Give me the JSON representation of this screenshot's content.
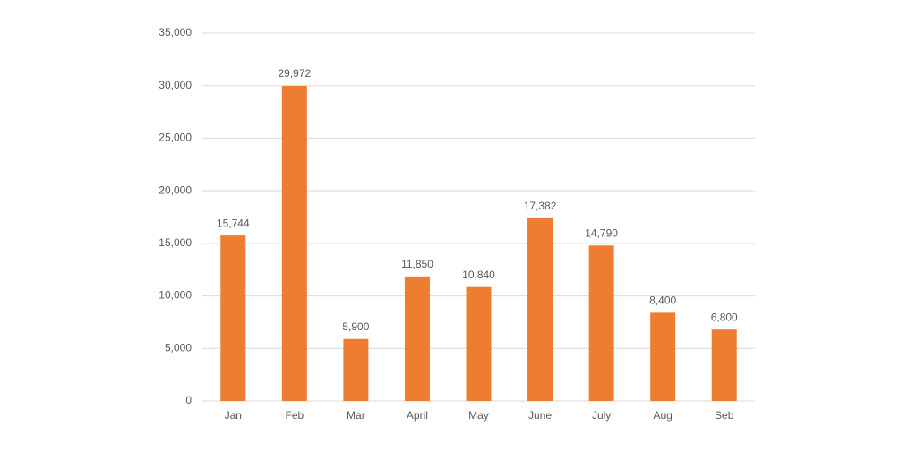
{
  "chart_data": {
    "type": "bar",
    "categories": [
      "Jan",
      "Feb",
      "Mar",
      "April",
      "May",
      "June",
      "July",
      "Aug",
      "Seb"
    ],
    "values": [
      15744,
      29972,
      5900,
      11850,
      10840,
      17382,
      14790,
      8400,
      6800
    ],
    "value_labels": [
      "15,744",
      "29,972",
      "5,900",
      "11,850",
      "10,840",
      "17,382",
      "14,790",
      "8,400",
      "6,800"
    ],
    "color": "#ed7d31",
    "ylim": [
      0,
      35000
    ],
    "yticks": [
      0,
      {
        "value": 5000,
        "label": "5,000"
      },
      {
        "value": 10000,
        "label": "10,000"
      },
      {
        "value": 15000,
        "label": "15,000"
      },
      {
        "value": 20000,
        "label": "20,000"
      },
      {
        "value": 25000,
        "label": "25,000"
      },
      {
        "value": 30000,
        "label": "30,000"
      },
      {
        "value": 35000,
        "label": "35,000"
      }
    ],
    "grid": true
  }
}
